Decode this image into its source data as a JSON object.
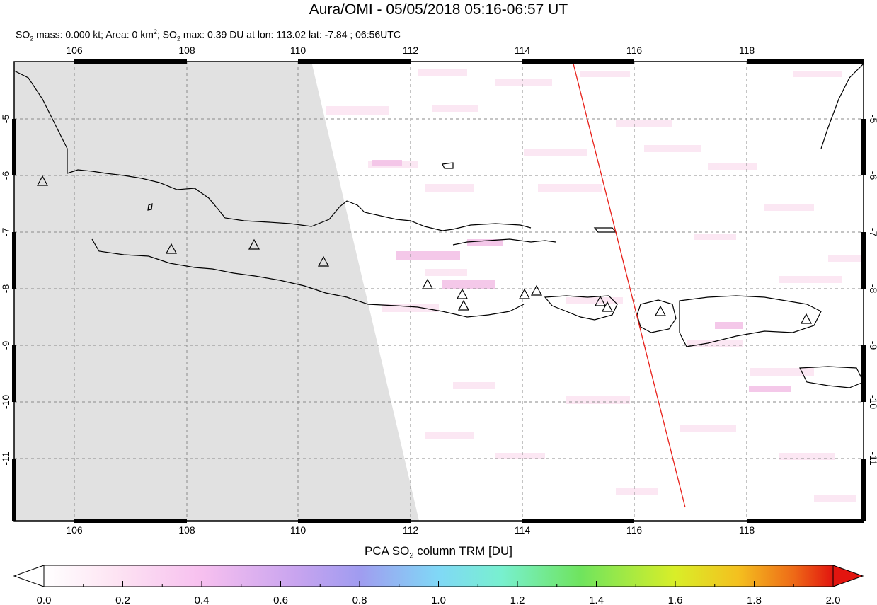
{
  "title": "Aura/OMI - 05/05/2018 05:16-06:57 UT",
  "subtitle": {
    "p1": "SO",
    "s1": "2",
    "p2": " mass: 0.000 kt; Area: 0 km",
    "sup": "2",
    "p3": "; SO",
    "s2": "2",
    "p4": " max: 0.39 DU at lon: 113.02 lat: -7.84 ; 06:56UTC"
  },
  "map": {
    "lon_ticks": [
      "106",
      "108",
      "110",
      "112",
      "114",
      "116",
      "118"
    ],
    "lat_ticks": [
      "-5",
      "-6",
      "-7",
      "-8",
      "-9",
      "-10",
      "-11"
    ],
    "lon_range": [
      105,
      120
    ],
    "lat_range": [
      -12,
      -4
    ],
    "volcano_marker": "triangle-icon",
    "orbit_track_color": "#e8201a",
    "no_data_color": "#e1e1e1"
  },
  "colorbar": {
    "title_p1": "PCA SO",
    "title_sub": "2",
    "title_p2": " column TRM [DU]",
    "ticks": [
      "0.0",
      "0.2",
      "0.4",
      "0.6",
      "0.8",
      "1.0",
      "1.2",
      "1.4",
      "1.6",
      "1.8",
      "2.0"
    ],
    "colors": [
      "#ffffff",
      "#fde4f3",
      "#f7c0ef",
      "#d8a6ef",
      "#a79ef0",
      "#86c4f5",
      "#7ef2f2",
      "#6ef08d",
      "#7fe13a",
      "#f0f026",
      "#f6b31d",
      "#ee5a16",
      "#e2150f"
    ]
  }
}
